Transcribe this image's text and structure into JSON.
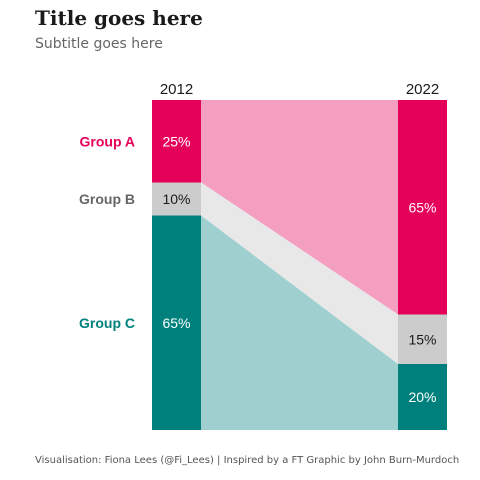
{
  "chart_data": {
    "type": "bar",
    "title": "Title goes here",
    "subtitle": "Subtitle goes here",
    "caption": "Visualisation: Fiona Lees (@Fi_Lees) | Inspired by a FT Graphic by John Burn-Murdoch",
    "categories": [
      "2012",
      "2022"
    ],
    "stacked": true,
    "ylim": [
      0,
      100
    ],
    "series": [
      {
        "name": "Group A",
        "values": [
          25,
          65
        ],
        "labels": [
          "25%",
          "65%"
        ],
        "color": "#e5005a",
        "fill": "#f49ec0",
        "label_color": "#ffffff"
      },
      {
        "name": "Group B",
        "values": [
          10,
          15
        ],
        "labels": [
          "10%",
          "15%"
        ],
        "color": "#cccccc",
        "fill": "#e8e8e8",
        "label_color": "#1a1a1a"
      },
      {
        "name": "Group C",
        "values": [
          65,
          20
        ],
        "labels": [
          "65%",
          "20%"
        ],
        "color": "#00807c",
        "fill": "#9fcfcf",
        "label_color": "#ffffff"
      }
    ],
    "label_colors": {
      "Group A": "#e5005a",
      "Group B": "#666666",
      "Group C": "#00807c"
    }
  }
}
